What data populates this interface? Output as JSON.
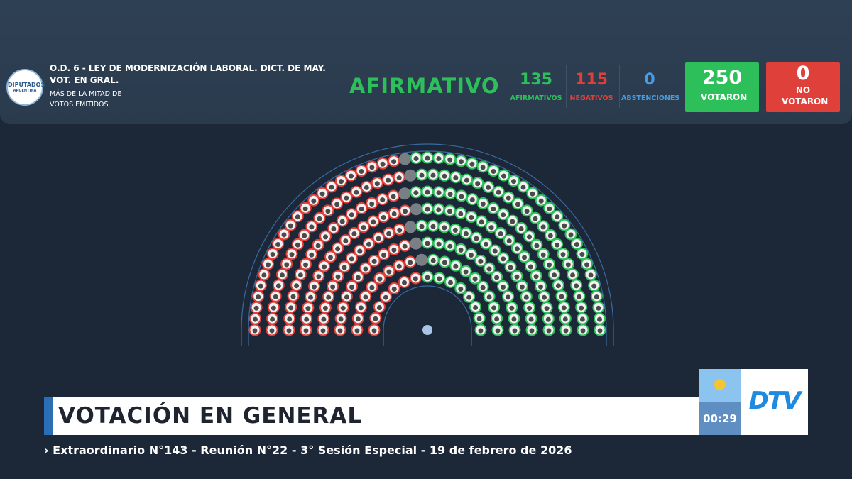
{
  "header": {
    "logo_line1": "DIPUTADOS",
    "logo_line2": "ARGENTINA",
    "title": "O.D. 6 - LEY DE MODERNIZACIÓN LABORAL. DICT. DE MAY. VOT. EN GRAL.",
    "subtitle": "MÁS DE LA MITAD DE VOTOS EMITIDOS",
    "result": "AFIRMATIVO",
    "afirmativos": {
      "value": 135,
      "label": "AFIRMATIVOS"
    },
    "negativos": {
      "value": 115,
      "label": "NEGATIVOS"
    },
    "abstenciones": {
      "value": 0,
      "label": "ABSTENCIONES"
    },
    "votaron": {
      "value": 250,
      "label": "VOTARON"
    },
    "no_votaron": {
      "value": 0,
      "label": "NO VOTARON"
    }
  },
  "lower_third": {
    "title": "VOTACIÓN EN GENERAL",
    "timer": "00:29",
    "logo": "DTV",
    "ticker": "› Extraordinario N°143 - Reunión N°22 - 3° Sesión Especial - 19 de febrero de 2026"
  }
}
